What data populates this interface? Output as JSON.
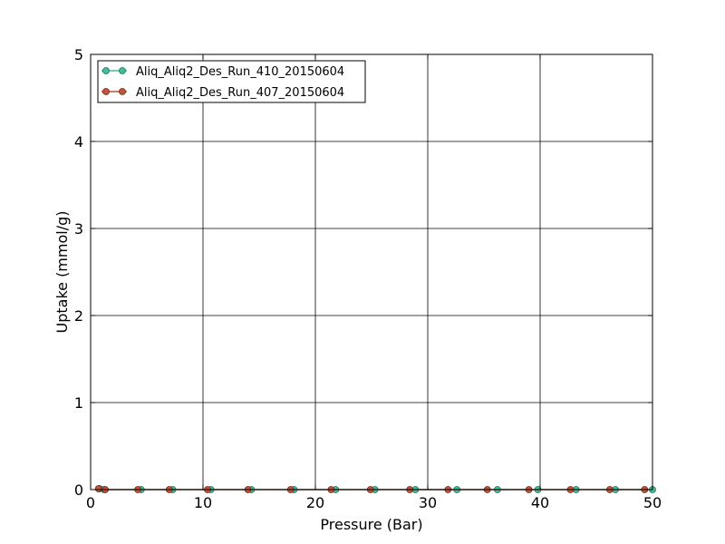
{
  "chart_data": {
    "type": "line",
    "title": "",
    "xlabel": "Pressure (Bar)",
    "ylabel": "Uptake (mmol/g)",
    "xlim": [
      0,
      50
    ],
    "ylim": [
      0,
      5
    ],
    "xticks": [
      "0",
      "10",
      "20",
      "30",
      "40",
      "50"
    ],
    "yticks": [
      "0",
      "1",
      "2",
      "3",
      "4",
      "5"
    ],
    "grid": true,
    "legend_position": "top-left",
    "series": [
      {
        "name": "Aliq_Aliq2_Des_Run_410_20150604",
        "color": "#3dbf9a",
        "marker": "circle",
        "x": [
          0.8,
          1.2,
          4.5,
          7.3,
          10.7,
          14.3,
          18.1,
          21.8,
          25.3,
          28.9,
          32.6,
          36.2,
          39.8,
          43.2,
          46.7,
          50.0
        ],
        "y": [
          0.01,
          0.0,
          0.0,
          0.0,
          0.0,
          0.0,
          0.0,
          0.0,
          0.0,
          0.0,
          0.0,
          0.0,
          0.0,
          0.0,
          0.0,
          0.0
        ]
      },
      {
        "name": "Aliq_Aliq2_Des_Run_407_20150604",
        "color": "#c0553c",
        "marker": "circle",
        "x": [
          0.7,
          1.3,
          4.2,
          7.0,
          10.4,
          14.0,
          17.8,
          21.4,
          24.9,
          28.4,
          31.8,
          35.3,
          39.0,
          42.7,
          46.2,
          49.3
        ],
        "y": [
          0.01,
          0.0,
          0.0,
          0.0,
          0.0,
          0.0,
          0.0,
          0.0,
          0.0,
          0.0,
          0.0,
          0.0,
          0.0,
          0.0,
          0.0,
          0.0
        ]
      }
    ]
  }
}
